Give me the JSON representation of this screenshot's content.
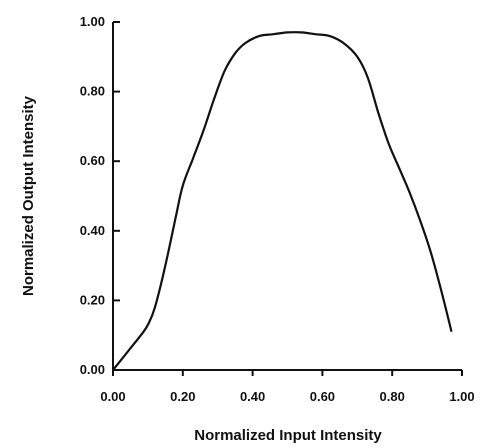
{
  "chart_data": {
    "type": "line",
    "title": "",
    "xlabel": "Normalized Input Intensity",
    "ylabel": "Normalized Output Intensity",
    "xlim": [
      0,
      1
    ],
    "ylim": [
      0,
      1
    ],
    "xticks": [
      "0.00",
      "0.20",
      "0.40",
      "0.60",
      "0.80",
      "1.00"
    ],
    "yticks": [
      "0.00",
      "0.20",
      "0.40",
      "0.60",
      "0.80",
      "1.00"
    ],
    "grid": false,
    "legend": "none",
    "series": [
      {
        "x": [
          0.0,
          0.04,
          0.08,
          0.1,
          0.12,
          0.15,
          0.18,
          0.2,
          0.23,
          0.26,
          0.29,
          0.32,
          0.35,
          0.38,
          0.42,
          0.46,
          0.5,
          0.54,
          0.58,
          0.62,
          0.66,
          0.7,
          0.73,
          0.76,
          0.79,
          0.82,
          0.85,
          0.88,
          0.91,
          0.94,
          0.97
        ],
        "y": [
          0.0,
          0.05,
          0.1,
          0.13,
          0.18,
          0.3,
          0.44,
          0.53,
          0.61,
          0.69,
          0.78,
          0.86,
          0.91,
          0.94,
          0.96,
          0.965,
          0.97,
          0.97,
          0.965,
          0.96,
          0.94,
          0.9,
          0.84,
          0.74,
          0.65,
          0.58,
          0.51,
          0.43,
          0.34,
          0.23,
          0.11
        ],
        "color": "#111111"
      }
    ]
  }
}
